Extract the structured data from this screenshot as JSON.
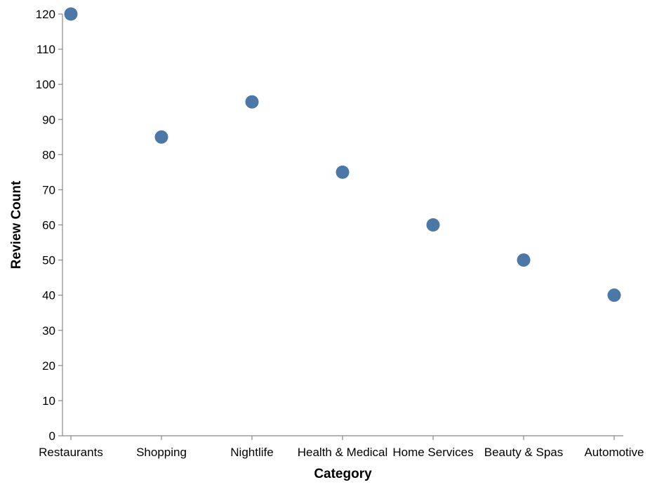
{
  "chart_data": {
    "type": "scatter",
    "categories": [
      "Restaurants",
      "Shopping",
      "Nightlife",
      "Health & Medical",
      "Home Services",
      "Beauty & Spas",
      "Automotive"
    ],
    "values": [
      120,
      85,
      95,
      75,
      60,
      50,
      40
    ],
    "xlabel": "Category",
    "ylabel": "Review Count",
    "ylim": [
      0,
      120
    ],
    "yticks": [
      0,
      10,
      20,
      30,
      40,
      50,
      60,
      70,
      80,
      90,
      100,
      110,
      120
    ],
    "grid": false,
    "point_color": "#4c78a8"
  }
}
